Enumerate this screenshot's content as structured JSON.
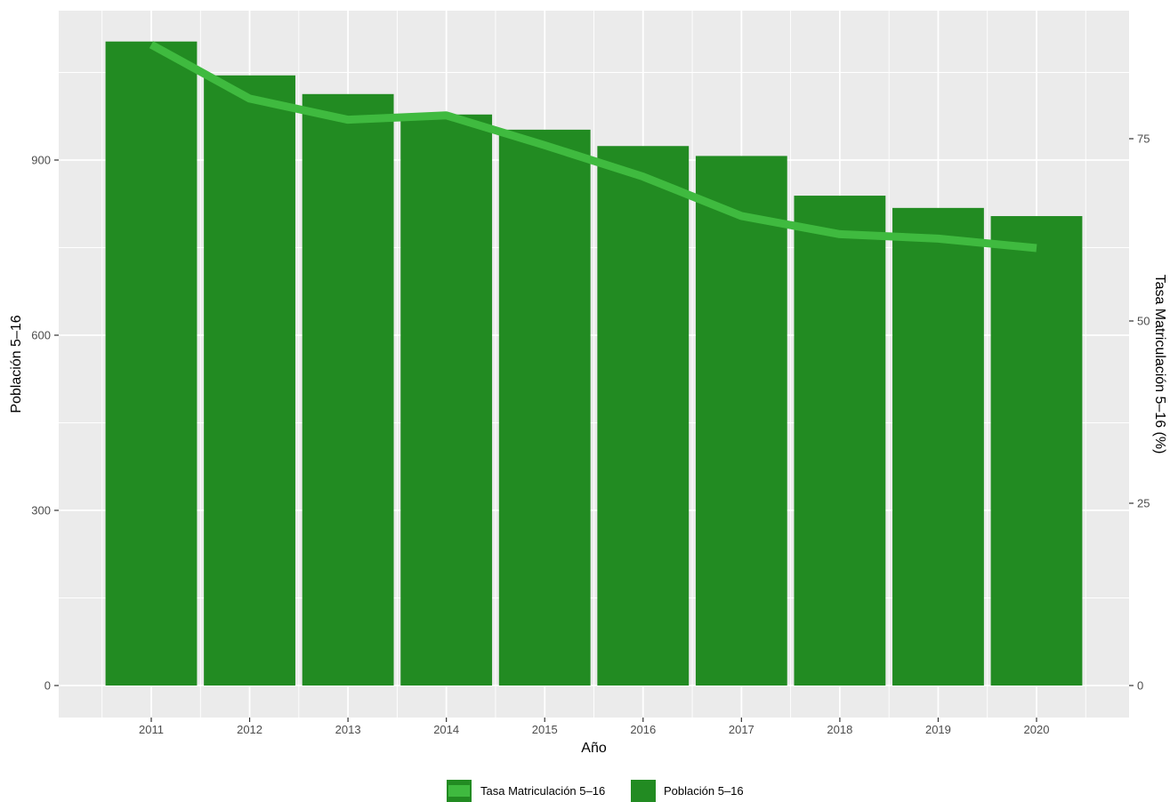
{
  "chart_data": {
    "type": "bar",
    "categories": [
      "2011",
      "2012",
      "2013",
      "2014",
      "2015",
      "2016",
      "2017",
      "2018",
      "2019",
      "2020"
    ],
    "series": [
      {
        "name": "Población 5–16",
        "type": "bar",
        "axis": "left",
        "values": [
          1103,
          1045,
          1013,
          978,
          952,
          924,
          907,
          839,
          818,
          804
        ]
      },
      {
        "name": "Tasa Matriculación 5–16",
        "type": "line",
        "axis": "right",
        "values": [
          87.9,
          80.5,
          77.6,
          78.2,
          74.1,
          69.8,
          64.4,
          61.9,
          61.3,
          60.0
        ]
      }
    ],
    "xlabel": "Año",
    "ylabel": "Población 5–16",
    "y2label": "Tasa Matriculación 5–16 (%)",
    "ylim": [
      0,
      1150
    ],
    "yticks": [
      "0",
      "300",
      "600",
      "900"
    ],
    "y2lim": [
      0,
      93.4
    ],
    "y2ticks": [
      "0",
      "25",
      "50",
      "75"
    ],
    "legend_position": "bottom",
    "grid": true,
    "colors": {
      "panel_background": "#EBEBEB",
      "grid": "#FFFFFF",
      "bar_fill": "#228B22",
      "line": "#3FBA3F",
      "legend_key_line_bg": "#228B22"
    }
  }
}
